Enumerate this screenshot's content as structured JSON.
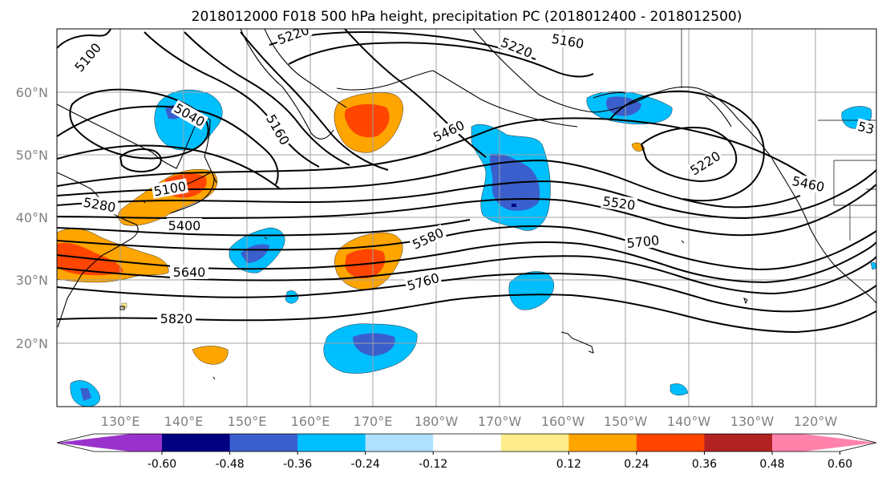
{
  "title": "2018012000 F018 500 hPa height, precipitation PC (2018012400 - 2018012500)",
  "lat_labels": [
    "60°N",
    "50°N",
    "40°N",
    "30°N",
    "20°N"
  ],
  "lon_labels": [
    "130°E",
    "140°E",
    "150°E",
    "160°E",
    "170°E",
    "180°W",
    "170°W",
    "160°W",
    "150°W",
    "140°W",
    "130°W",
    "120°W"
  ],
  "contour_labels": [
    "5100",
    "5220",
    "5160",
    "5220",
    "5040",
    "5160",
    "5460",
    "5100",
    "5280",
    "5400",
    "5640",
    "5580",
    "5520",
    "5700",
    "5760",
    "5820",
    "5220",
    "5460",
    "53"
  ],
  "colorbar": {
    "colors": [
      "#9932cc",
      "#000080",
      "#3a5fcd",
      "#00bfff",
      "#b0e2ff",
      "#ffffff",
      "#ffec8b",
      "#ffa500",
      "#ff4500",
      "#b22222",
      "#ff82ab"
    ],
    "tick_labels": [
      "-0.60",
      "-0.48",
      "-0.36",
      "-0.24",
      "-0.12",
      "0.12",
      "0.24",
      "0.36",
      "0.48",
      "0.60"
    ]
  }
}
